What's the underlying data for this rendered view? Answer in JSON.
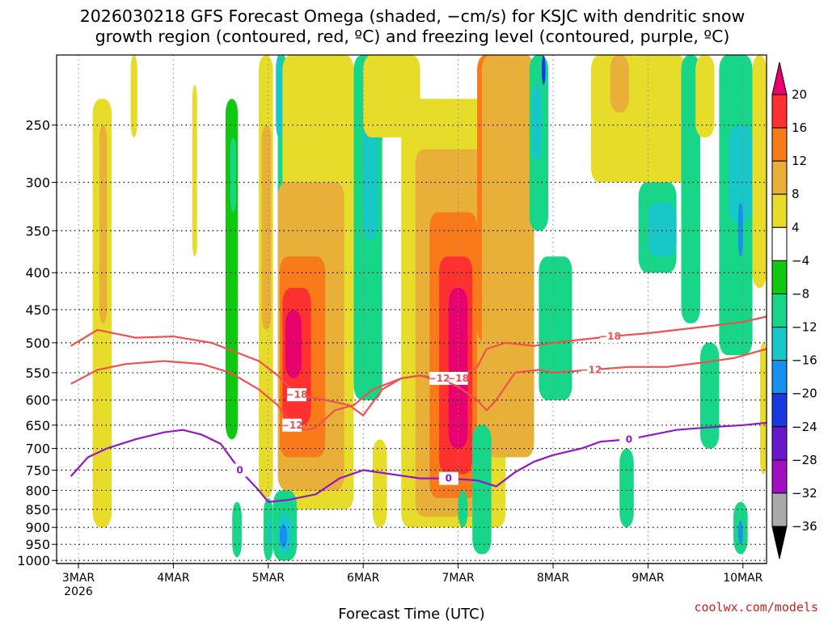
{
  "title": {
    "line1": "2026030218 GFS Forecast Omega (shaded, −cm/s) for KSJC with dendritic snow",
    "line2": "growth region (contoured, red, ºC) and freezing level (contoured, purple, ºC)"
  },
  "credit": "coolwx.com/models",
  "chart_data": {
    "type": "heatmap",
    "title": "2026030218 GFS Forecast Omega (shaded, −cm/s) for KSJC with dendritic snow growth region (contoured, red, ºC) and freezing level (contoured, purple, ºC)",
    "xlabel": "Forecast Time (UTC)",
    "ylabel": "",
    "x_ticks": [
      {
        "label": "3MAR",
        "sub": "2026",
        "day": 0
      },
      {
        "label": "4MAR",
        "day": 1
      },
      {
        "label": "5MAR",
        "day": 2
      },
      {
        "label": "6MAR",
        "day": 3
      },
      {
        "label": "7MAR",
        "day": 4
      },
      {
        "label": "8MAR",
        "day": 5
      },
      {
        "label": "9MAR",
        "day": 6
      },
      {
        "label": "10MAR",
        "day": 7
      }
    ],
    "xlim": [
      -0.08,
      7.25
    ],
    "y_ticks": [
      250,
      300,
      350,
      400,
      450,
      500,
      550,
      600,
      650,
      700,
      750,
      800,
      850,
      900,
      950,
      1000
    ],
    "ylim_hpa": [
      1010,
      200
    ],
    "y_scale": "log-pressure",
    "grid": true,
    "colorbar": {
      "levels": [
        "20",
        "16",
        "12",
        "8",
        "4",
        "−4",
        "−8",
        "−12",
        "−16",
        "−20",
        "−24",
        "−28",
        "−32",
        "−36"
      ],
      "colors": [
        "#e8006e",
        "#ff3030",
        "#f87a18",
        "#e8b038",
        "#e8dc2a",
        "#ffffff",
        "#10c810",
        "#18d688",
        "#18c8c8",
        "#1890f0",
        "#1838e0",
        "#6818c8",
        "#a010c0",
        "#aaaaaa",
        "#000000"
      ]
    },
    "omega_cells": [
      {
        "x0": 0.15,
        "x1": 0.35,
        "p0": 230,
        "p1": 900,
        "v": 4
      },
      {
        "x0": 0.22,
        "x1": 0.3,
        "p0": 250,
        "p1": 470,
        "v": 8
      },
      {
        "x0": 0.55,
        "x1": 0.62,
        "p0": 200,
        "p1": 260,
        "v": 4
      },
      {
        "x0": 1.2,
        "x1": 1.25,
        "p0": 220,
        "p1": 380,
        "v": 4
      },
      {
        "x0": 1.62,
        "x1": 1.67,
        "p0": 280,
        "p1": 420,
        "v": 4
      },
      {
        "x0": 1.55,
        "x1": 1.68,
        "p0": 230,
        "p1": 680,
        "v": -4
      },
      {
        "x0": 1.6,
        "x1": 1.66,
        "p0": 260,
        "p1": 330,
        "v": -8
      },
      {
        "x0": 1.62,
        "x1": 1.72,
        "p0": 830,
        "p1": 990,
        "v": -8
      },
      {
        "x0": 1.9,
        "x1": 2.05,
        "p0": 200,
        "p1": 820,
        "v": 4
      },
      {
        "x0": 1.93,
        "x1": 2.03,
        "p0": 250,
        "p1": 480,
        "v": 8
      },
      {
        "x0": 2.1,
        "x1": 2.2,
        "p0": 200,
        "p1": 430,
        "v": -8
      },
      {
        "x0": 2.08,
        "x1": 2.15,
        "p0": 200,
        "p1": 260,
        "v": -12
      },
      {
        "x0": 1.95,
        "x1": 2.05,
        "p0": 820,
        "p1": 1000,
        "v": -8
      },
      {
        "x0": 2.0,
        "x1": 2.04,
        "p0": 870,
        "p1": 960,
        "v": -12
      },
      {
        "x0": 2.15,
        "x1": 2.9,
        "p0": 200,
        "p1": 850,
        "v": 4
      },
      {
        "x0": 2.1,
        "x1": 2.8,
        "p0": 300,
        "p1": 800,
        "v": 8
      },
      {
        "x0": 2.12,
        "x1": 2.6,
        "p0": 380,
        "p1": 720,
        "v": 12
      },
      {
        "x0": 2.15,
        "x1": 2.45,
        "p0": 420,
        "p1": 650,
        "v": 16
      },
      {
        "x0": 2.18,
        "x1": 2.35,
        "p0": 450,
        "p1": 560,
        "v": 20
      },
      {
        "x0": 2.05,
        "x1": 2.3,
        "p0": 800,
        "p1": 1000,
        "v": -8
      },
      {
        "x0": 2.1,
        "x1": 2.25,
        "p0": 860,
        "p1": 980,
        "v": -12
      },
      {
        "x0": 2.12,
        "x1": 2.2,
        "p0": 890,
        "p1": 960,
        "v": -16
      },
      {
        "x0": 2.9,
        "x1": 3.2,
        "p0": 200,
        "p1": 600,
        "v": -8
      },
      {
        "x0": 3.0,
        "x1": 3.15,
        "p0": 200,
        "p1": 360,
        "v": -12
      },
      {
        "x0": 3.1,
        "x1": 3.25,
        "p0": 680,
        "p1": 900,
        "v": 4
      },
      {
        "x0": 3.0,
        "x1": 3.6,
        "p0": 200,
        "p1": 260,
        "v": 4
      },
      {
        "x0": 3.4,
        "x1": 4.5,
        "p0": 230,
        "p1": 900,
        "v": 4
      },
      {
        "x0": 3.55,
        "x1": 4.3,
        "p0": 270,
        "p1": 870,
        "v": 8
      },
      {
        "x0": 3.7,
        "x1": 4.2,
        "p0": 330,
        "p1": 820,
        "v": 12
      },
      {
        "x0": 3.8,
        "x1": 4.15,
        "p0": 380,
        "p1": 760,
        "v": 16
      },
      {
        "x0": 3.9,
        "x1": 4.1,
        "p0": 420,
        "p1": 700,
        "v": 20
      },
      {
        "x0": 4.2,
        "x1": 4.75,
        "p0": 200,
        "p1": 500,
        "v": 12
      },
      {
        "x0": 4.3,
        "x1": 4.75,
        "p0": 200,
        "p1": 430,
        "v": 20
      },
      {
        "x0": 4.25,
        "x1": 4.8,
        "p0": 200,
        "p1": 720,
        "v": 8
      },
      {
        "x0": 4.15,
        "x1": 4.35,
        "p0": 650,
        "p1": 980,
        "v": -8
      },
      {
        "x0": 4.0,
        "x1": 4.1,
        "p0": 800,
        "p1": 900,
        "v": -8
      },
      {
        "x0": 4.75,
        "x1": 4.95,
        "p0": 200,
        "p1": 350,
        "v": -8
      },
      {
        "x0": 4.78,
        "x1": 4.88,
        "p0": 220,
        "p1": 280,
        "v": -12
      },
      {
        "x0": 4.88,
        "x1": 4.92,
        "p0": 200,
        "p1": 220,
        "v": -20
      },
      {
        "x0": 4.85,
        "x1": 5.2,
        "p0": 380,
        "p1": 600,
        "v": -8
      },
      {
        "x0": 5.4,
        "x1": 5.9,
        "p0": 200,
        "p1": 300,
        "v": 4
      },
      {
        "x0": 5.6,
        "x1": 5.8,
        "p0": 200,
        "p1": 240,
        "v": 8
      },
      {
        "x0": 5.7,
        "x1": 5.85,
        "p0": 700,
        "p1": 900,
        "v": -8
      },
      {
        "x0": 5.8,
        "x1": 6.4,
        "p0": 200,
        "p1": 300,
        "v": 4
      },
      {
        "x0": 5.9,
        "x1": 6.3,
        "p0": 300,
        "p1": 400,
        "v": -8
      },
      {
        "x0": 6.0,
        "x1": 6.3,
        "p0": 320,
        "p1": 380,
        "v": -12
      },
      {
        "x0": 6.35,
        "x1": 6.55,
        "p0": 200,
        "p1": 470,
        "v": -8
      },
      {
        "x0": 6.5,
        "x1": 6.7,
        "p0": 200,
        "p1": 260,
        "v": 4
      },
      {
        "x0": 6.55,
        "x1": 6.75,
        "p0": 500,
        "p1": 700,
        "v": -8
      },
      {
        "x0": 6.75,
        "x1": 7.1,
        "p0": 200,
        "p1": 520,
        "v": -8
      },
      {
        "x0": 6.85,
        "x1": 7.1,
        "p0": 250,
        "p1": 340,
        "v": -12
      },
      {
        "x0": 6.95,
        "x1": 7.0,
        "p0": 320,
        "p1": 380,
        "v": -16
      },
      {
        "x0": 6.9,
        "x1": 7.05,
        "p0": 830,
        "p1": 980,
        "v": -8
      },
      {
        "x0": 6.95,
        "x1": 7.0,
        "p0": 880,
        "p1": 950,
        "v": -16
      },
      {
        "x0": 7.1,
        "x1": 7.25,
        "p0": 200,
        "p1": 420,
        "v": 4
      },
      {
        "x0": 7.18,
        "x1": 7.25,
        "p0": 500,
        "p1": 760,
        "v": 4
      }
    ],
    "contours": [
      {
        "label": "−18",
        "color": "#f05050",
        "points": [
          [
            -0.08,
            505
          ],
          [
            0.2,
            480
          ],
          [
            0.6,
            492
          ],
          [
            1.0,
            490
          ],
          [
            1.4,
            500
          ],
          [
            1.9,
            530
          ],
          [
            2.1,
            555
          ],
          [
            2.3,
            590
          ],
          [
            2.6,
            600
          ],
          [
            2.85,
            610
          ],
          [
            3.0,
            630
          ],
          [
            3.2,
            580
          ],
          [
            3.4,
            560
          ],
          [
            3.6,
            555
          ],
          [
            3.8,
            565
          ],
          [
            4.0,
            560
          ],
          [
            4.2,
            540
          ],
          [
            4.3,
            510
          ],
          [
            4.5,
            500
          ],
          [
            4.8,
            505
          ],
          [
            5.0,
            500
          ],
          [
            5.3,
            495
          ],
          [
            5.6,
            490
          ],
          [
            6.0,
            485
          ],
          [
            6.3,
            480
          ],
          [
            6.6,
            475
          ],
          [
            7.0,
            468
          ],
          [
            7.25,
            460
          ]
        ]
      },
      {
        "label": "−12",
        "color": "#f05050",
        "points": [
          [
            -0.08,
            570
          ],
          [
            0.2,
            545
          ],
          [
            0.5,
            535
          ],
          [
            0.9,
            530
          ],
          [
            1.3,
            535
          ],
          [
            1.6,
            550
          ],
          [
            1.9,
            580
          ],
          [
            2.1,
            610
          ],
          [
            2.25,
            650
          ],
          [
            2.4,
            660
          ],
          [
            2.5,
            655
          ],
          [
            2.7,
            620
          ],
          [
            2.9,
            610
          ],
          [
            3.1,
            580
          ],
          [
            3.4,
            560
          ],
          [
            3.6,
            555
          ],
          [
            3.8,
            560
          ],
          [
            4.0,
            575
          ],
          [
            4.2,
            600
          ],
          [
            4.3,
            620
          ],
          [
            4.4,
            600
          ],
          [
            4.6,
            550
          ],
          [
            4.85,
            545
          ],
          [
            5.0,
            550
          ],
          [
            5.4,
            545
          ],
          [
            5.8,
            540
          ],
          [
            6.2,
            540
          ],
          [
            6.6,
            532
          ],
          [
            6.9,
            525
          ],
          [
            7.25,
            510
          ]
        ]
      },
      {
        "label": "0",
        "color": "#9018c8",
        "points": [
          [
            -0.08,
            765
          ],
          [
            0.1,
            720
          ],
          [
            0.3,
            700
          ],
          [
            0.6,
            680
          ],
          [
            0.9,
            665
          ],
          [
            1.1,
            660
          ],
          [
            1.3,
            670
          ],
          [
            1.5,
            690
          ],
          [
            1.7,
            750
          ],
          [
            1.9,
            800
          ],
          [
            2.0,
            830
          ],
          [
            2.2,
            825
          ],
          [
            2.5,
            810
          ],
          [
            2.75,
            770
          ],
          [
            3.0,
            750
          ],
          [
            3.3,
            760
          ],
          [
            3.6,
            770
          ],
          [
            3.9,
            770
          ],
          [
            4.2,
            775
          ],
          [
            4.4,
            790
          ],
          [
            4.6,
            755
          ],
          [
            4.8,
            730
          ],
          [
            5.0,
            715
          ],
          [
            5.3,
            700
          ],
          [
            5.5,
            685
          ],
          [
            5.8,
            680
          ],
          [
            6.0,
            672
          ],
          [
            6.3,
            660
          ],
          [
            6.6,
            655
          ],
          [
            7.0,
            650
          ],
          [
            7.25,
            645
          ]
        ]
      }
    ]
  }
}
